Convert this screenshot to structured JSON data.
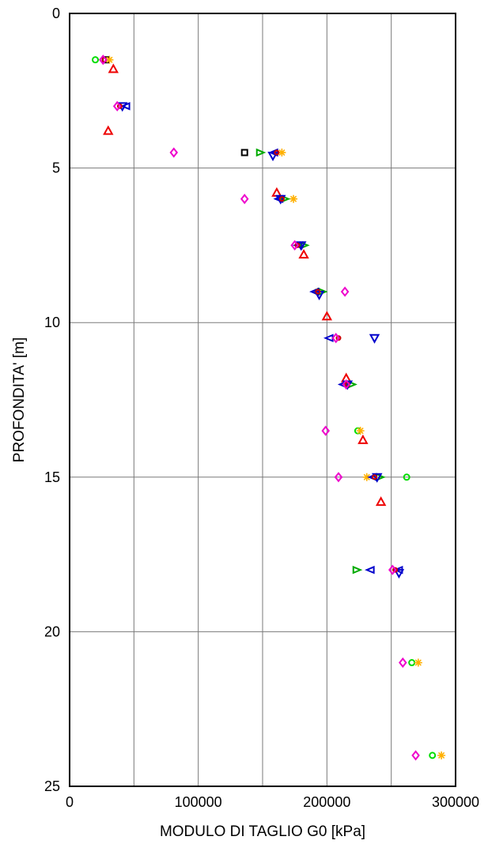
{
  "chart_data": {
    "type": "scatter",
    "xlabel": "MODULO DI TAGLIO G0 [kPa]",
    "ylabel": "PROFONDITA' [m]",
    "xlim": [
      0,
      300000
    ],
    "ylim": [
      0,
      25
    ],
    "y_inverted": true,
    "grid": true,
    "x_ticks": [
      0,
      100000,
      200000,
      300000
    ],
    "x_tick_labels": [
      "0",
      "100000",
      "200000",
      "300000"
    ],
    "y_ticks": [
      0,
      5,
      10,
      15,
      20,
      25
    ],
    "y_tick_labels": [
      "0",
      "5",
      "10",
      "15",
      "20",
      "25"
    ],
    "series": [
      {
        "marker": "square",
        "color": "#000000",
        "points": [
          [
            28000,
            1.5
          ],
          [
            136000,
            4.5
          ]
        ]
      },
      {
        "marker": "circle",
        "color": "#00dd00",
        "points": [
          [
            20000,
            1.5
          ],
          [
            224000,
            13.5
          ],
          [
            262000,
            15.0
          ],
          [
            266000,
            21.0
          ],
          [
            282000,
            24.0
          ]
        ]
      },
      {
        "marker": "star",
        "color": "#ffb000",
        "points": [
          [
            31000,
            1.5
          ],
          [
            165000,
            4.5
          ],
          [
            174000,
            6.0
          ],
          [
            193000,
            9.0
          ],
          [
            226000,
            13.5
          ],
          [
            231000,
            15.0
          ],
          [
            271000,
            21.0
          ],
          [
            289000,
            24.0
          ]
        ]
      },
      {
        "marker": "triangle-up",
        "color": "#ee0000",
        "points": [
          [
            34000,
            1.8
          ],
          [
            30000,
            3.8
          ],
          [
            161000,
            5.8
          ],
          [
            182000,
            7.8
          ],
          [
            200000,
            9.8
          ],
          [
            215000,
            11.8
          ],
          [
            228000,
            13.8
          ],
          [
            242000,
            15.8
          ]
        ]
      },
      {
        "marker": "triangle-right",
        "color": "#00aa00",
        "points": [
          [
            148000,
            4.5
          ],
          [
            167000,
            6.0
          ],
          [
            182000,
            7.5
          ],
          [
            196000,
            9.0
          ],
          [
            219000,
            12.0
          ],
          [
            241000,
            15.0
          ],
          [
            223000,
            18.0
          ]
        ]
      },
      {
        "marker": "triangle-left",
        "color": "#0000cc",
        "points": [
          [
            44000,
            3.0
          ],
          [
            159000,
            4.5
          ],
          [
            163000,
            6.0
          ],
          [
            178000,
            7.5
          ],
          [
            191000,
            9.0
          ],
          [
            202000,
            10.5
          ],
          [
            213000,
            12.0
          ],
          [
            236000,
            15.0
          ],
          [
            234000,
            18.0
          ],
          [
            256000,
            18.0
          ]
        ]
      },
      {
        "marker": "triangle-down",
        "color": "#0000cc",
        "points": [
          [
            41000,
            3.0
          ],
          [
            158000,
            4.6
          ],
          [
            164000,
            6.0
          ],
          [
            180000,
            7.5
          ],
          [
            194000,
            9.1
          ],
          [
            237000,
            10.5
          ],
          [
            216000,
            12.0
          ],
          [
            239000,
            15.0
          ],
          [
            256000,
            18.1
          ]
        ]
      },
      {
        "marker": "circle-small",
        "color": "#cc0000",
        "points": [
          [
            27000,
            1.5
          ],
          [
            39000,
            3.0
          ],
          [
            161000,
            4.5
          ],
          [
            165000,
            6.0
          ],
          [
            177000,
            7.5
          ],
          [
            193000,
            9.0
          ],
          [
            209000,
            10.5
          ],
          [
            216000,
            12.0
          ],
          [
            237000,
            15.0
          ],
          [
            253000,
            18.0
          ]
        ]
      },
      {
        "marker": "diamond",
        "color": "#ee00cc",
        "points": [
          [
            26000,
            1.5
          ],
          [
            37000,
            3.0
          ],
          [
            81000,
            4.5
          ],
          [
            136000,
            6.0
          ],
          [
            175000,
            7.5
          ],
          [
            214000,
            9.0
          ],
          [
            207000,
            10.5
          ],
          [
            215000,
            12.0
          ],
          [
            199000,
            13.5
          ],
          [
            209000,
            15.0
          ],
          [
            251000,
            18.0
          ],
          [
            259000,
            21.0
          ],
          [
            269000,
            24.0
          ]
        ]
      }
    ]
  }
}
